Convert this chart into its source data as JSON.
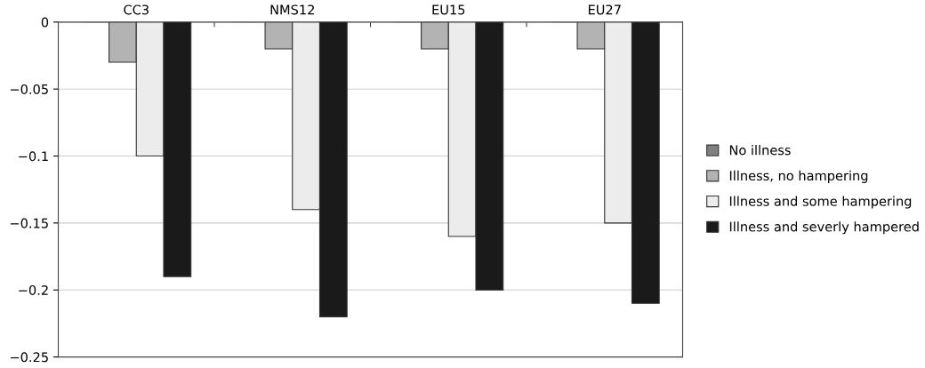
{
  "chart_data": {
    "type": "bar",
    "categories": [
      "CC3",
      "NMS12",
      "EU15",
      "EU27"
    ],
    "series": [
      {
        "name": "No illness",
        "color": "#808080",
        "values": [
          0,
          0,
          0,
          0
        ]
      },
      {
        "name": "Illness, no hampering",
        "color": "#b3b3b3",
        "values": [
          -0.03,
          -0.02,
          -0.02,
          -0.02
        ]
      },
      {
        "name": "Illness and some hampering",
        "color": "#ececec",
        "values": [
          -0.1,
          -0.14,
          -0.16,
          -0.15
        ]
      },
      {
        "name": "Illness and severly hampered",
        "color": "#1a1a1a",
        "values": [
          -0.19,
          -0.22,
          -0.2,
          -0.21
        ]
      }
    ],
    "ylim": [
      -0.25,
      0
    ],
    "yticks": [
      0,
      {
        "value": -0.05,
        "label": "−0.05"
      },
      {
        "value": -0.1,
        "label": "−0.1"
      },
      {
        "value": -0.15,
        "label": "−0.15"
      },
      {
        "value": -0.2,
        "label": "−0.2"
      },
      {
        "value": -0.25,
        "label": "−0.25"
      }
    ],
    "grid": "y",
    "legend": "right"
  }
}
